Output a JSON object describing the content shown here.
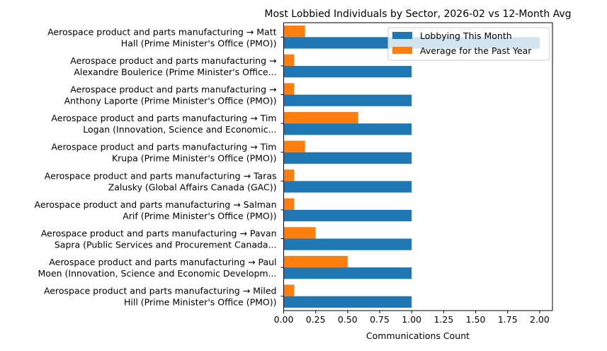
{
  "chart_data": {
    "type": "bar",
    "orientation": "horizontal",
    "title": "Most Lobbied Individuals by Sector, 2026-02 vs 12-Month Avg",
    "xlabel": "Communications Count",
    "ylabel": "",
    "xlim": [
      0,
      2.1
    ],
    "xticks": [
      "0.00",
      "0.25",
      "0.50",
      "0.75",
      "1.00",
      "1.25",
      "1.50",
      "1.75",
      "2.00"
    ],
    "grid": false,
    "legend_position": "top-right",
    "categories": [
      [
        "Aerospace product and parts manufacturing → Matt",
        "Hall (Prime Minister's Office (PMO))"
      ],
      [
        "Aerospace product and parts manufacturing →",
        "Alexandre Boulerice (Prime Minister's Office..."
      ],
      [
        "Aerospace product and parts manufacturing →",
        "Anthony Laporte (Prime Minister's Office (PMO))"
      ],
      [
        "Aerospace product and parts manufacturing → Tim",
        "Logan (Innovation, Science and Economic..."
      ],
      [
        "Aerospace product and parts manufacturing → Tim",
        "Krupa (Prime Minister's Office (PMO))"
      ],
      [
        "Aerospace product and parts manufacturing → Taras",
        "Zalusky (Global Affairs Canada (GAC))"
      ],
      [
        "Aerospace product and parts manufacturing → Salman",
        "Arif (Prime Minister's Office (PMO))"
      ],
      [
        "Aerospace product and parts manufacturing → Pavan",
        "Sapra (Public Services and Procurement Canada..."
      ],
      [
        "Aerospace product and parts manufacturing → Paul",
        "Moen (Innovation, Science and Economic Developm..."
      ],
      [
        "Aerospace product and parts manufacturing → Miled",
        "Hill (Prime Minister's Office (PMO))"
      ]
    ],
    "series": [
      {
        "name": "Lobbying This Month",
        "color": "#1f77b4",
        "values": [
          2,
          1,
          1,
          1,
          1,
          1,
          1,
          1,
          1,
          1
        ]
      },
      {
        "name": "Average for the Past Year",
        "color": "#ff7f0e",
        "values": [
          0.167,
          0.083,
          0.083,
          0.583,
          0.167,
          0.083,
          0.083,
          0.25,
          0.5,
          0.083
        ]
      }
    ]
  }
}
